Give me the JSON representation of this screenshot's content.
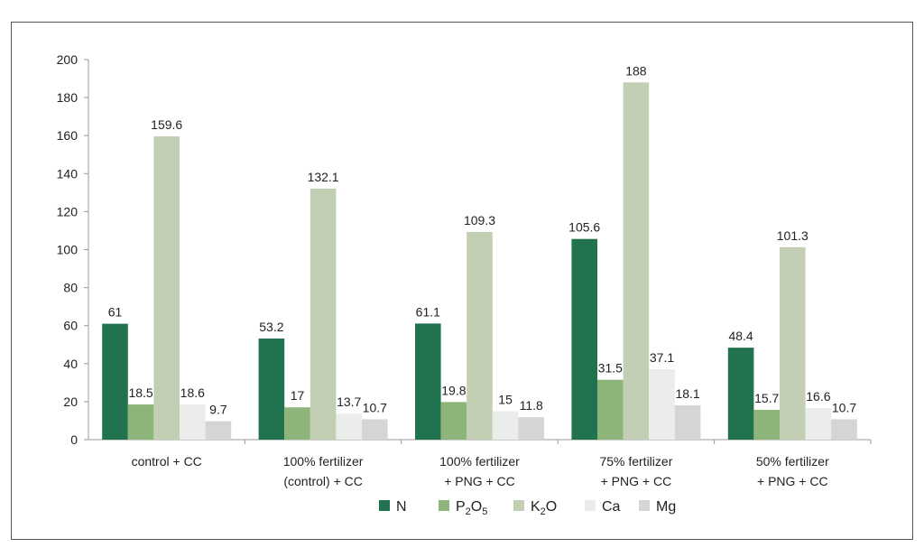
{
  "chart_data": {
    "type": "bar",
    "categories": [
      [
        "control + CC"
      ],
      [
        "100% fertilizer",
        "(control) + CC"
      ],
      [
        "100% fertilizer",
        "+ PNG + CC"
      ],
      [
        "75% fertilizer",
        "+ PNG + CC"
      ],
      [
        "50% fertilizer",
        "+ PNG + CC"
      ]
    ],
    "series": [
      {
        "name": "N",
        "values": [
          61,
          53.2,
          61.1,
          105.6,
          48.4
        ],
        "color": "#217350"
      },
      {
        "name": "P2O5",
        "values": [
          18.5,
          17,
          19.8,
          31.5,
          15.7
        ],
        "color": "#8db57a"
      },
      {
        "name": "K2O",
        "values": [
          159.6,
          132.1,
          109.3,
          188,
          101.3
        ],
        "color": "#c3cfb4"
      },
      {
        "name": "Ca",
        "values": [
          18.6,
          13.7,
          15,
          37.1,
          16.6
        ],
        "color": "#ebedea"
      },
      {
        "name": "Mg",
        "values": [
          9.7,
          10.7,
          11.8,
          18.1,
          10.7
        ],
        "color": "#d3d5d6"
      }
    ],
    "ylim": [
      0,
      200
    ],
    "yticks": [
      0,
      20,
      40,
      60,
      80,
      100,
      120,
      140,
      160,
      180,
      200
    ],
    "grid": false,
    "legend_position": "bottom",
    "title": "",
    "xlabel": "",
    "ylabel": ""
  }
}
